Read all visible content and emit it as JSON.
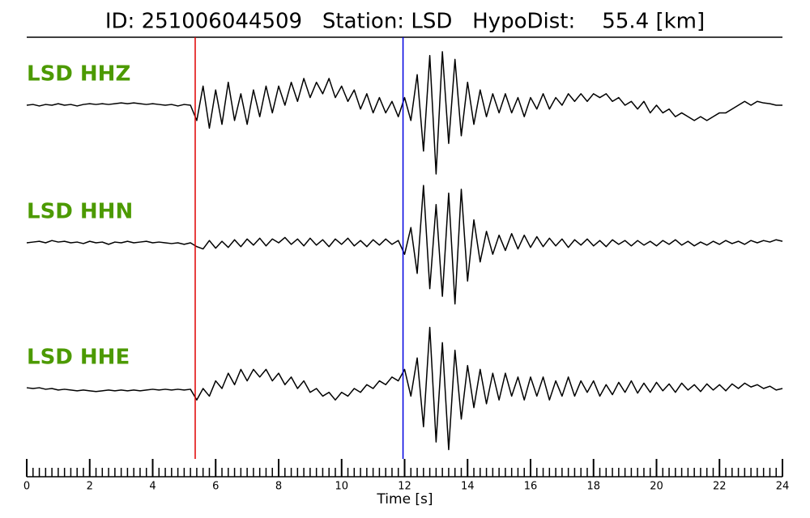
{
  "chart_data": {
    "type": "seismogram",
    "title": "ID: 251006044509   Station: LSD   HypoDist:    55.4 [km]",
    "xlabel": "Time [s]",
    "xlim": [
      0,
      24
    ],
    "xticks": [
      0,
      2,
      4,
      6,
      8,
      10,
      12,
      14,
      16,
      18,
      20,
      22,
      24
    ],
    "xminorticks": [
      0,
      0.2,
      0.4,
      0.6,
      0.8,
      1,
      1.2,
      1.4,
      1.6,
      1.8,
      2,
      2.2,
      2.4,
      2.6,
      2.8,
      3,
      3.2,
      3.4,
      3.6,
      3.8,
      4,
      4.2,
      4.4,
      4.6,
      4.8,
      5,
      5.2,
      5.4,
      5.6,
      5.8,
      6,
      6.2,
      6.4,
      6.6,
      6.8,
      7,
      7.2,
      7.4,
      7.6,
      7.8,
      8,
      8.2,
      8.4,
      8.6,
      8.8,
      9,
      9.2,
      9.4,
      9.6,
      9.8,
      10,
      10.2,
      10.4,
      10.6,
      10.8,
      11,
      11.2,
      11.4,
      11.6,
      11.8,
      12,
      12.2,
      12.4,
      12.6,
      12.8,
      13,
      13.2,
      13.4,
      13.6,
      13.8,
      14,
      14.2,
      14.4,
      14.6,
      14.8,
      15,
      15.2,
      15.4,
      15.6,
      15.8,
      16,
      16.2,
      16.4,
      16.6,
      16.8,
      17,
      17.2,
      17.4,
      17.6,
      17.8,
      18,
      18.2,
      18.4,
      18.6,
      18.8,
      19,
      19.2,
      19.4,
      19.6,
      19.8,
      20,
      20.2,
      20.4,
      20.6,
      20.8,
      21,
      21.2,
      21.4,
      21.6,
      21.8,
      22,
      22.2,
      22.4,
      22.6,
      22.8,
      23,
      23.2,
      23.4,
      23.6,
      23.8,
      24
    ],
    "ylim": [
      -9,
      9
    ],
    "label_color": "#4c9a00",
    "x": [
      0,
      0.2,
      0.4,
      0.6,
      0.8,
      1,
      1.2,
      1.4,
      1.6,
      1.8,
      2,
      2.2,
      2.4,
      2.6,
      2.8,
      3,
      3.2,
      3.4,
      3.6,
      3.8,
      4,
      4.2,
      4.4,
      4.6,
      4.8,
      5,
      5.2,
      5.4,
      5.6,
      5.8,
      6,
      6.2,
      6.4,
      6.6,
      6.8,
      7,
      7.2,
      7.4,
      7.6,
      7.8,
      8,
      8.2,
      8.4,
      8.6,
      8.8,
      9,
      9.2,
      9.4,
      9.6,
      9.8,
      10,
      10.2,
      10.4,
      10.6,
      10.8,
      11,
      11.2,
      11.4,
      11.6,
      11.8,
      12,
      12.2,
      12.4,
      12.6,
      12.8,
      13,
      13.2,
      13.4,
      13.6,
      13.8,
      14,
      14.2,
      14.4,
      14.6,
      14.8,
      15,
      15.2,
      15.4,
      15.6,
      15.8,
      16,
      16.2,
      16.4,
      16.6,
      16.8,
      17,
      17.2,
      17.4,
      17.6,
      17.8,
      18,
      18.2,
      18.4,
      18.6,
      18.8,
      19,
      19.2,
      19.4,
      19.6,
      19.8,
      20,
      20.2,
      20.4,
      20.6,
      20.8,
      21,
      21.2,
      21.4,
      21.6,
      21.8,
      22,
      22.2,
      22.4,
      22.6,
      22.8,
      23,
      23.2,
      23.4,
      23.6,
      23.8,
      24
    ],
    "picks": [
      {
        "x": 5.35,
        "color": "#e00000"
      },
      {
        "x": 11.95,
        "color": "#0000e0"
      }
    ],
    "series": [
      {
        "name": "LSD HHZ",
        "color": "#000000",
        "values": [
          0,
          0.1,
          -0.1,
          0.1,
          0,
          0.2,
          0,
          0.1,
          -0.1,
          0.1,
          0.2,
          0.1,
          0.2,
          0.1,
          0.2,
          0.3,
          0.2,
          0.3,
          0.2,
          0.1,
          0.2,
          0.1,
          0,
          0.1,
          -0.1,
          0.1,
          0,
          -2,
          2.5,
          -3,
          2,
          -2.5,
          3,
          -2,
          1.5,
          -2.5,
          2,
          -1.5,
          2.5,
          -1,
          2.5,
          0,
          3,
          0.5,
          3.5,
          1,
          3,
          1.5,
          3.5,
          1,
          2.5,
          0.5,
          2,
          -0.5,
          1.5,
          -1,
          1,
          -1,
          0.5,
          -1.5,
          1,
          -2,
          4,
          -6,
          6.5,
          -9,
          7,
          -5,
          6,
          -4,
          3,
          -2.5,
          2,
          -1.5,
          1.5,
          -1,
          1.5,
          -1,
          1,
          -1.5,
          1,
          -0.5,
          1.5,
          -0.5,
          1,
          0,
          1.5,
          0.5,
          1.5,
          0.5,
          1.5,
          1,
          1.5,
          0.5,
          1,
          0,
          0.5,
          -0.5,
          0.5,
          -1,
          0,
          -1,
          -0.5,
          -1.5,
          -1,
          -1.5,
          -2,
          -1.5,
          -2,
          -1.5,
          -1,
          -1,
          -0.5,
          0,
          0.5,
          0,
          0.5,
          0.3,
          0.2,
          0,
          0
        ]
      },
      {
        "name": "LSD HHN",
        "color": "#000000",
        "values": [
          0,
          0.1,
          0.2,
          0,
          0.3,
          0.1,
          0.2,
          0,
          0.1,
          -0.1,
          0.2,
          0,
          0.1,
          -0.2,
          0.1,
          0,
          0.2,
          0,
          0.1,
          0.2,
          0,
          0.1,
          0,
          -0.1,
          0,
          -0.2,
          0,
          -0.5,
          -0.8,
          0.3,
          -0.7,
          0.2,
          -0.6,
          0.4,
          -0.5,
          0.5,
          -0.3,
          0.6,
          -0.4,
          0.5,
          0,
          0.7,
          -0.2,
          0.5,
          -0.4,
          0.6,
          -0.3,
          0.4,
          -0.5,
          0.5,
          -0.2,
          0.6,
          -0.4,
          0.3,
          -0.5,
          0.4,
          -0.3,
          0.5,
          -0.2,
          0.3,
          -1.5,
          2,
          -4,
          7.5,
          -6,
          5,
          -7,
          6.5,
          -8,
          7,
          -5,
          3,
          -2.5,
          1.5,
          -1.5,
          1,
          -1,
          1.2,
          -0.8,
          1,
          -0.6,
          0.8,
          -0.5,
          0.6,
          -0.4,
          0.5,
          -0.6,
          0.4,
          -0.3,
          0.5,
          -0.4,
          0.3,
          -0.5,
          0.4,
          -0.2,
          0.3,
          -0.4,
          0.3,
          -0.3,
          0.2,
          -0.4,
          0.3,
          -0.2,
          0.4,
          -0.3,
          0.2,
          -0.4,
          0.1,
          -0.3,
          0.2,
          -0.2,
          0.3,
          -0.1,
          0.2,
          -0.2,
          0.3,
          0,
          0.3,
          0.1,
          0.4,
          0.2
        ]
      },
      {
        "name": "LSD HHE",
        "color": "#000000",
        "values": [
          0.1,
          0,
          0.1,
          -0.1,
          0,
          -0.2,
          -0.1,
          -0.2,
          -0.3,
          -0.2,
          -0.3,
          -0.4,
          -0.3,
          -0.2,
          -0.3,
          -0.2,
          -0.3,
          -0.2,
          -0.3,
          -0.2,
          -0.1,
          -0.2,
          -0.1,
          -0.2,
          -0.1,
          -0.2,
          -0.1,
          -1.5,
          0,
          -1,
          1,
          0,
          2,
          0.5,
          2.5,
          1,
          2.5,
          1.5,
          2.5,
          1,
          2,
          0.5,
          1.5,
          0,
          1,
          -0.5,
          0,
          -1,
          -0.5,
          -1.5,
          -0.5,
          -1,
          0,
          -0.5,
          0.5,
          0,
          1,
          0.5,
          1.5,
          1,
          2.5,
          -1,
          4,
          -5,
          8,
          -7,
          6,
          -8,
          5,
          -4,
          3,
          -2.5,
          2.5,
          -2,
          2,
          -1.5,
          2,
          -1,
          1.5,
          -1.5,
          1.5,
          -1,
          1.5,
          -1.5,
          1,
          -1,
          1.5,
          -1,
          1,
          -0.5,
          1,
          -1,
          0.5,
          -0.8,
          0.8,
          -0.5,
          1,
          -0.6,
          0.7,
          -0.5,
          0.8,
          -0.3,
          0.6,
          -0.5,
          0.7,
          -0.2,
          0.5,
          -0.4,
          0.6,
          -0.2,
          0.5,
          -0.3,
          0.6,
          0,
          0.7,
          0.2,
          0.5,
          0,
          0.3,
          -0.2,
          0
        ]
      }
    ]
  }
}
